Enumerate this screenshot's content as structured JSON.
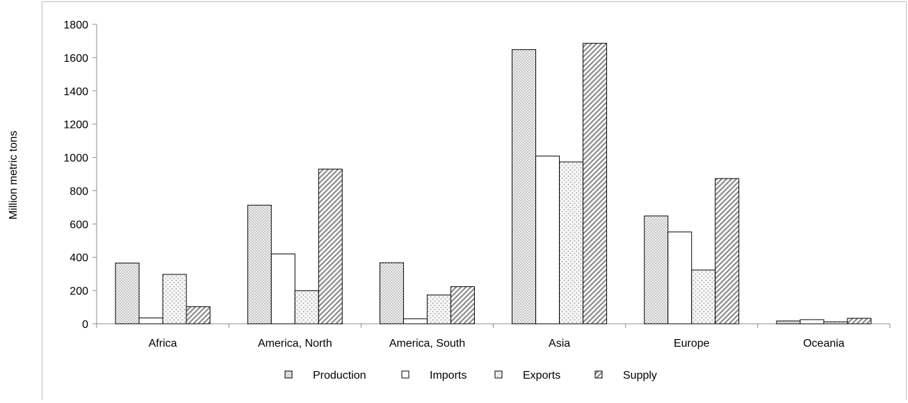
{
  "chart_data": {
    "type": "bar",
    "title": "",
    "xlabel": "",
    "ylabel": "Million metric tons",
    "ylim": [
      0,
      1800
    ],
    "yticks": [
      0,
      200,
      400,
      600,
      800,
      1000,
      1200,
      1400,
      1600,
      1800
    ],
    "grid": false,
    "legend_position": "bottom",
    "categories": [
      "Africa",
      "America, North",
      "America, South",
      "Asia",
      "Europe",
      "Oceania"
    ],
    "series": [
      {
        "name": "Production",
        "pattern": "dots-dense",
        "values": [
          365,
          713,
          367,
          1648,
          648,
          17
        ]
      },
      {
        "name": "Imports",
        "pattern": "none",
        "values": [
          35,
          420,
          30,
          1008,
          552,
          25
        ]
      },
      {
        "name": "Exports",
        "pattern": "dots-sparse",
        "values": [
          297,
          199,
          173,
          973,
          323,
          12
        ]
      },
      {
        "name": "Supply",
        "pattern": "diagonal",
        "values": [
          103,
          930,
          223,
          1686,
          873,
          33
        ]
      }
    ]
  }
}
